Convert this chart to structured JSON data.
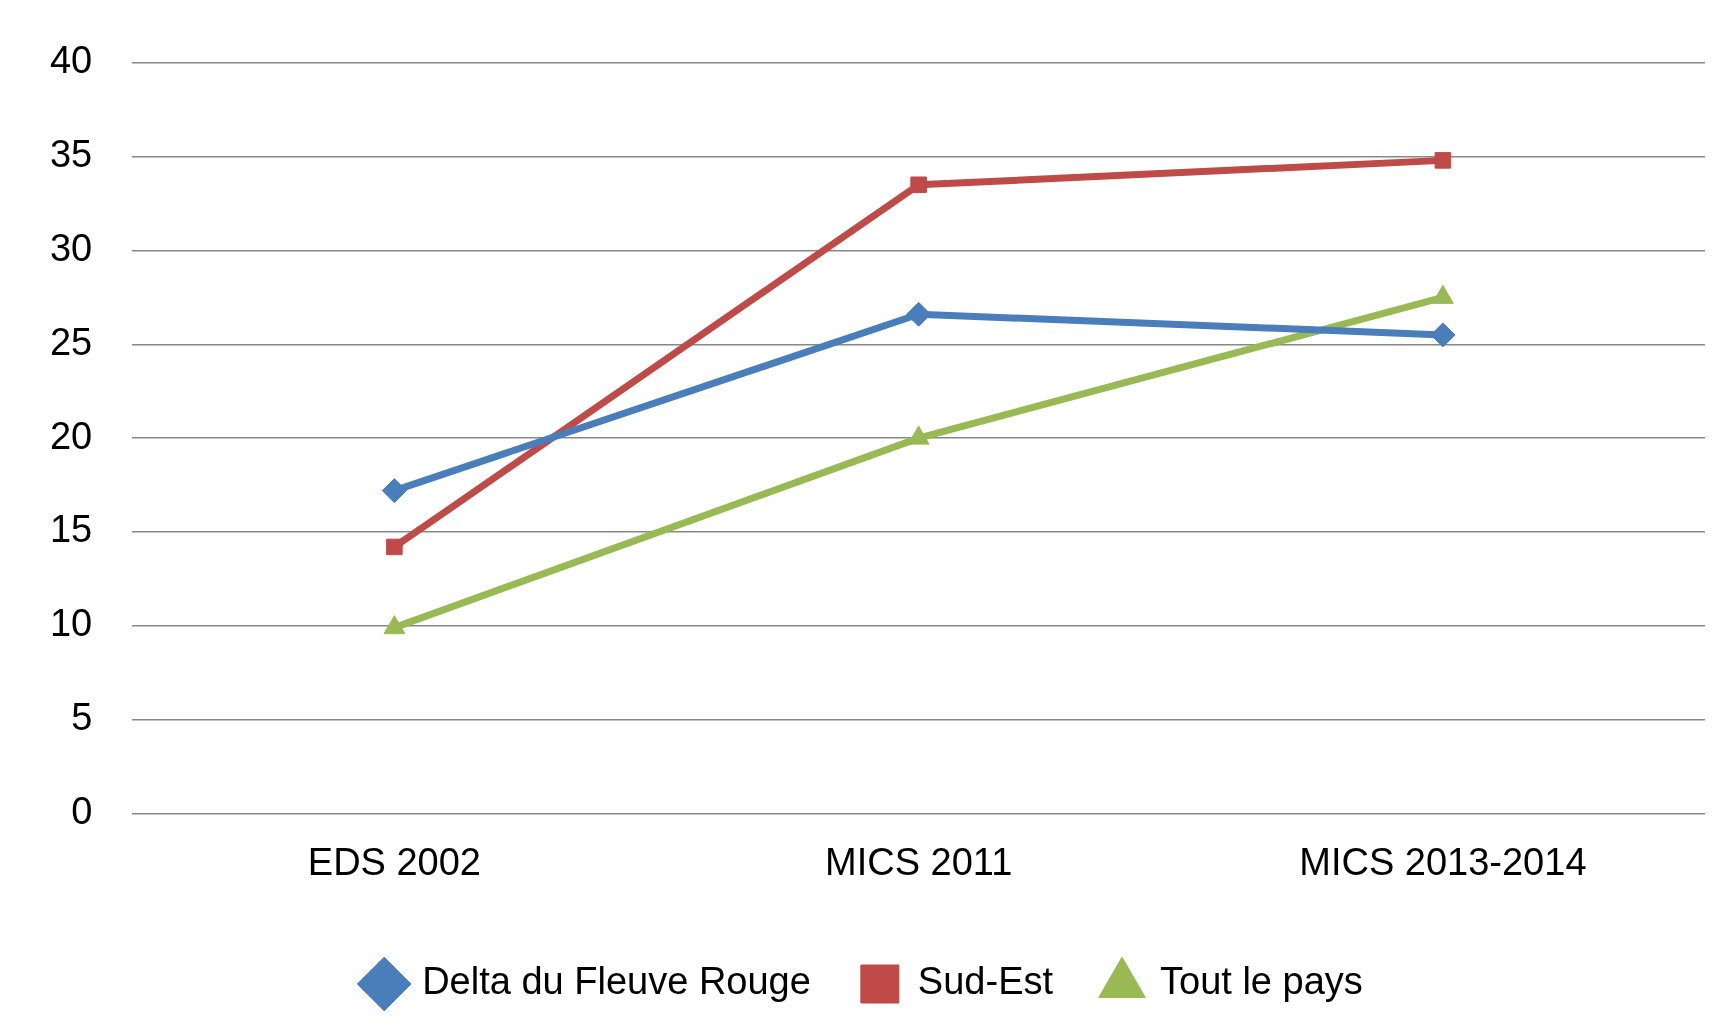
{
  "chart_data": {
    "type": "line",
    "categories": [
      "EDS 2002",
      "MICS 2011",
      "MICS 2013-2014"
    ],
    "series": [
      {
        "name": "Delta du Fleuve Rouge",
        "color": "#4a7ebb",
        "values": [
          17.2,
          26.6,
          25.5
        ]
      },
      {
        "name": "Sud-Est",
        "color": "#be4b48",
        "values": [
          14.2,
          33.5,
          34.8
        ],
        "marker": "square"
      },
      {
        "name": "Tout le pays",
        "color": "#98b954",
        "values": [
          9.9,
          20,
          27.5
        ],
        "marker": "triangle"
      }
    ],
    "ylim": [
      0,
      40
    ],
    "yticks": [
      0,
      5,
      10,
      15,
      20,
      25,
      30,
      35,
      40
    ],
    "grid": "y",
    "legend": "bottom",
    "marker": "diamond",
    "line_style": "solid"
  }
}
